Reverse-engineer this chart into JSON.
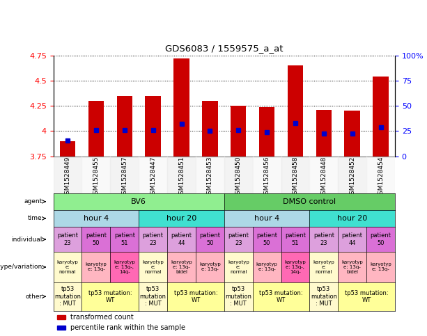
{
  "title": "GDS6083 / 1559575_a_at",
  "samples": [
    "GSM1528449",
    "GSM1528455",
    "GSM1528457",
    "GSM1528447",
    "GSM1528451",
    "GSM1528453",
    "GSM1528450",
    "GSM1528456",
    "GSM1528458",
    "GSM1528448",
    "GSM1528452",
    "GSM1528454"
  ],
  "bar_values": [
    3.9,
    4.3,
    4.35,
    4.35,
    4.72,
    4.3,
    4.25,
    4.24,
    4.65,
    4.21,
    4.2,
    4.54
  ],
  "dot_values": [
    3.905,
    4.01,
    4.01,
    4.01,
    4.07,
    4.0,
    4.01,
    3.99,
    4.08,
    3.975,
    3.975,
    4.04
  ],
  "ylim_left": [
    3.75,
    4.75
  ],
  "ylim_right": [
    0,
    100
  ],
  "yticks_left": [
    3.75,
    4.0,
    4.25,
    4.5,
    4.75
  ],
  "ytick_labels_left": [
    "3.75",
    "4",
    "4.25",
    "4.5",
    "4.75"
  ],
  "yticks_right": [
    0,
    25,
    50,
    75,
    100
  ],
  "ytick_labels_right": [
    "0",
    "25",
    "50",
    "75",
    "100%"
  ],
  "bar_color": "#CC0000",
  "dot_color": "#0000CC",
  "bar_bottom": 3.75,
  "agent_spans": [
    {
      "text": "BV6",
      "start": 0,
      "end": 6,
      "color": "#90EE90"
    },
    {
      "text": "DMSO control",
      "start": 6,
      "end": 12,
      "color": "#66CC66"
    }
  ],
  "time_spans": [
    {
      "text": "hour 4",
      "start": 0,
      "end": 3,
      "color": "#ADD8E6"
    },
    {
      "text": "hour 20",
      "start": 3,
      "end": 6,
      "color": "#40E0D0"
    },
    {
      "text": "hour 4",
      "start": 6,
      "end": 9,
      "color": "#ADD8E6"
    },
    {
      "text": "hour 20",
      "start": 9,
      "end": 12,
      "color": "#40E0D0"
    }
  ],
  "individual_cells": [
    {
      "text": "patient\n23",
      "color": "#DDA0DD"
    },
    {
      "text": "patient\n50",
      "color": "#DA70D6"
    },
    {
      "text": "patient\n51",
      "color": "#DA70D6"
    },
    {
      "text": "patient\n23",
      "color": "#DDA0DD"
    },
    {
      "text": "patient\n44",
      "color": "#DDA0DD"
    },
    {
      "text": "patient\n50",
      "color": "#DA70D6"
    },
    {
      "text": "patient\n23",
      "color": "#DDA0DD"
    },
    {
      "text": "patient\n50",
      "color": "#DA70D6"
    },
    {
      "text": "patient\n51",
      "color": "#DA70D6"
    },
    {
      "text": "patient\n23",
      "color": "#DDA0DD"
    },
    {
      "text": "patient\n44",
      "color": "#DDA0DD"
    },
    {
      "text": "patient\n50",
      "color": "#DA70D6"
    }
  ],
  "genotype_cells": [
    {
      "text": "karyotyp\ne:\nnormal",
      "color": "#FFFACD"
    },
    {
      "text": "karyotyp\ne: 13q-",
      "color": "#FFB6C1"
    },
    {
      "text": "karyotyp\ne: 13q-,\n14q-",
      "color": "#FF69B4"
    },
    {
      "text": "karyotyp\ne:\nnormal",
      "color": "#FFFACD"
    },
    {
      "text": "karyotyp\ne: 13q-\nbidel",
      "color": "#FFB6C1"
    },
    {
      "text": "karyotyp\ne: 13q-",
      "color": "#FFB6C1"
    },
    {
      "text": "karyotyp\ne:\nnormal",
      "color": "#FFFACD"
    },
    {
      "text": "karyotyp\ne: 13q-",
      "color": "#FFB6C1"
    },
    {
      "text": "karyotyp\ne: 13q-,\n14q-",
      "color": "#FF69B4"
    },
    {
      "text": "karyotyp\ne:\nnormal",
      "color": "#FFFACD"
    },
    {
      "text": "karyotyp\ne: 13q-\nbidel",
      "color": "#FFB6C1"
    },
    {
      "text": "karyotyp\ne: 13q-",
      "color": "#FFB6C1"
    }
  ],
  "other_spans": [
    {
      "text": "tp53\nmutation\n: MUT",
      "start": 0,
      "end": 1,
      "color": "#FFFACD"
    },
    {
      "text": "tp53 mutation:\nWT",
      "start": 1,
      "end": 3,
      "color": "#FFFF99"
    },
    {
      "text": "tp53\nmutation\n: MUT",
      "start": 3,
      "end": 4,
      "color": "#FFFACD"
    },
    {
      "text": "tp53 mutation:\nWT",
      "start": 4,
      "end": 6,
      "color": "#FFFF99"
    },
    {
      "text": "tp53\nmutation\n: MUT",
      "start": 6,
      "end": 7,
      "color": "#FFFACD"
    },
    {
      "text": "tp53 mutation:\nWT",
      "start": 7,
      "end": 9,
      "color": "#FFFF99"
    },
    {
      "text": "tp53\nmutation\n: MUT",
      "start": 9,
      "end": 10,
      "color": "#FFFACD"
    },
    {
      "text": "tp53 mutation:\nWT",
      "start": 10,
      "end": 12,
      "color": "#FFFF99"
    }
  ],
  "row_labels": [
    "agent",
    "time",
    "individual",
    "genotype/variation",
    "other"
  ],
  "legend": [
    {
      "label": "transformed count",
      "color": "#CC0000"
    },
    {
      "label": "percentile rank within the sample",
      "color": "#0000CC"
    }
  ]
}
